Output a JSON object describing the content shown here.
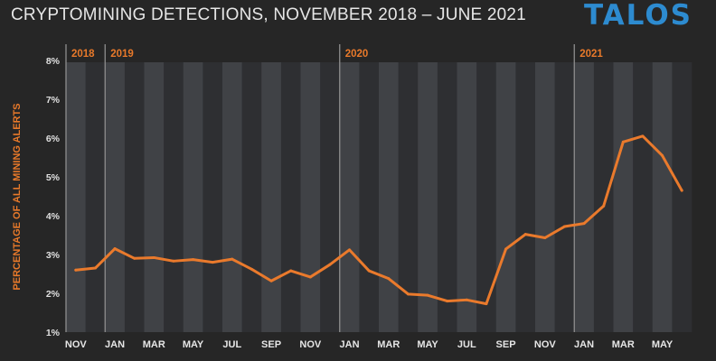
{
  "header": {
    "title": "CRYPTOMINING DETECTIONS, NOVEMBER 2018 – JUNE 2021",
    "brand": "TALOS"
  },
  "chart_data": {
    "type": "line",
    "title": "CRYPTOMINING DETECTIONS, NOVEMBER 2018 – JUNE 2021",
    "xlabel": "",
    "ylabel": "PERCENTAGE OF ALL MINING ALERTS",
    "ylim": [
      1,
      8
    ],
    "y_ticks": [
      "1%",
      "2%",
      "3%",
      "4%",
      "5%",
      "6%",
      "7%",
      "8%"
    ],
    "x_ticks": [
      "NOV",
      "JAN",
      "MAR",
      "MAY",
      "JUL",
      "SEP",
      "NOV",
      "JAN",
      "MAR",
      "MAY",
      "JUL",
      "SEP",
      "NOV",
      "JAN",
      "MAR",
      "MAY"
    ],
    "year_labels": [
      "2018",
      "2019",
      "2020",
      "2021"
    ],
    "grid": "alternating vertical month bands",
    "colors": {
      "line": "#ea7a2c",
      "band_dark": "#404246",
      "band_light": "#2e2f32",
      "year_divider": "#8e8e8e",
      "brand": "#2d8bd0"
    },
    "series": [
      {
        "x": [
          "2018-11",
          "2018-12",
          "2019-01",
          "2019-02",
          "2019-03",
          "2019-04",
          "2019-05",
          "2019-06",
          "2019-07",
          "2019-08",
          "2019-09",
          "2019-10",
          "2019-11",
          "2019-12",
          "2020-01",
          "2020-02",
          "2020-03",
          "2020-04",
          "2020-05",
          "2020-06",
          "2020-07",
          "2020-08",
          "2020-09",
          "2020-10",
          "2020-11",
          "2020-12",
          "2021-01",
          "2021-02",
          "2021-03",
          "2021-04",
          "2021-05",
          "2021-06"
        ],
        "values": [
          2.6,
          2.65,
          3.15,
          2.9,
          2.92,
          2.83,
          2.87,
          2.8,
          2.88,
          2.62,
          2.32,
          2.58,
          2.42,
          2.74,
          3.12,
          2.58,
          2.38,
          1.98,
          1.95,
          1.8,
          1.83,
          1.73,
          3.14,
          3.52,
          3.43,
          3.72,
          3.8,
          4.25,
          5.9,
          6.05,
          5.55,
          4.65
        ]
      }
    ]
  }
}
